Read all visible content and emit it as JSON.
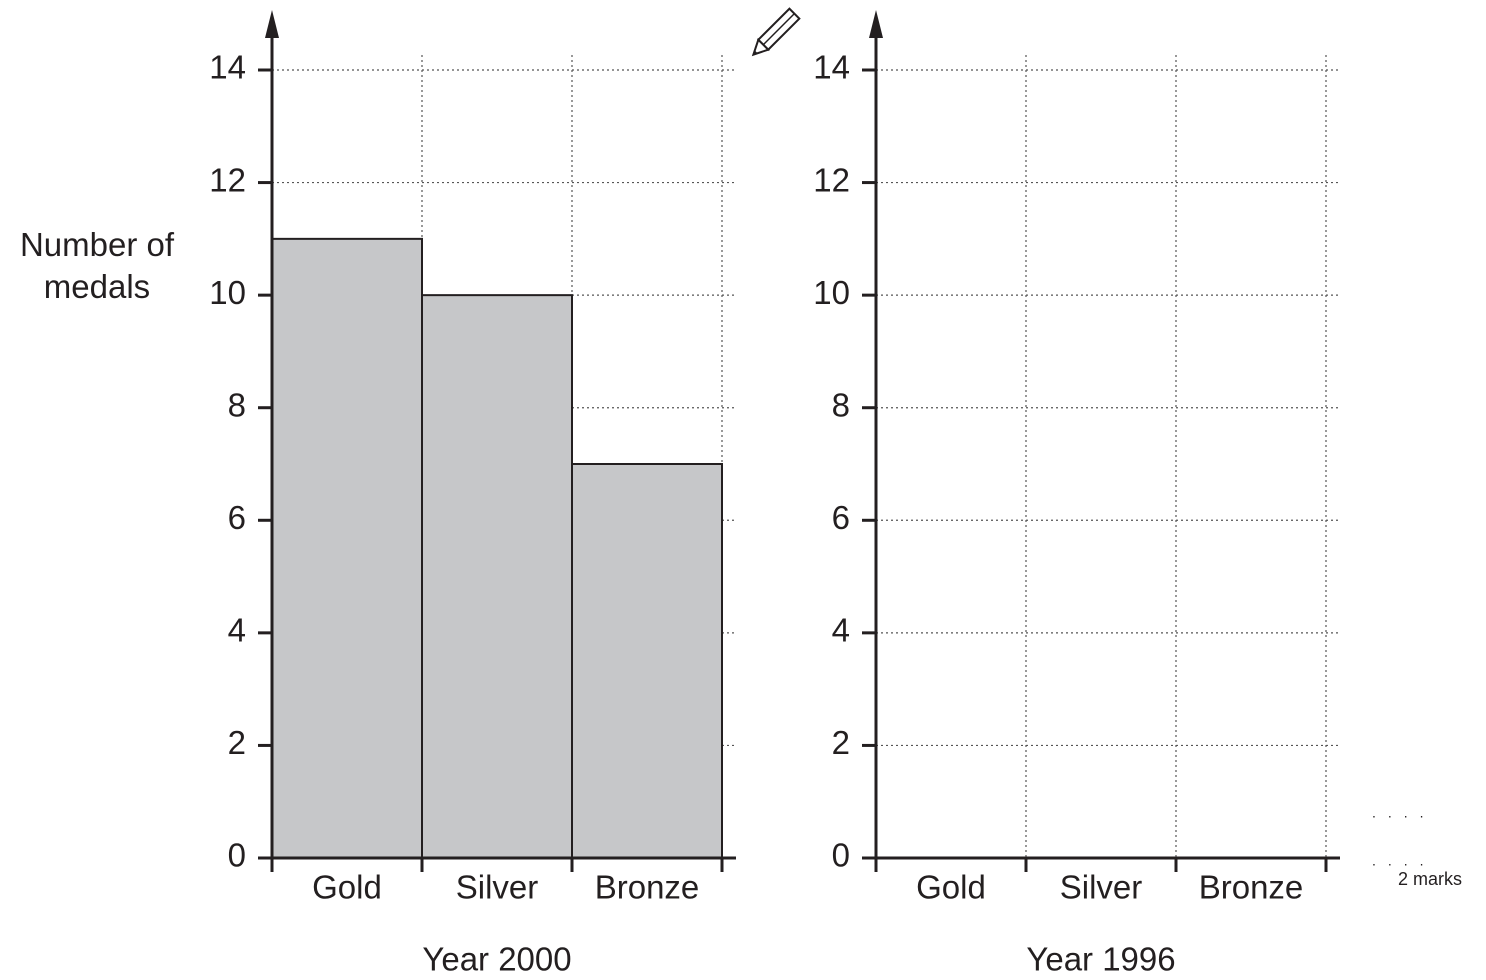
{
  "chart_data": [
    {
      "type": "bar",
      "title": "Year 2000",
      "ylabel": "Number of medals",
      "categories": [
        "Gold",
        "Silver",
        "Bronze"
      ],
      "values": [
        11,
        10,
        7
      ],
      "color": "#c6c7c9",
      "ylim": [
        0,
        14
      ],
      "yticks": [
        0,
        2,
        4,
        6,
        8,
        10,
        12,
        14
      ],
      "grid": true
    },
    {
      "type": "bar",
      "title": "Year 1996",
      "categories": [
        "Gold",
        "Silver",
        "Bronze"
      ],
      "values": [
        null,
        null,
        null
      ],
      "color": "#c6c7c9",
      "ylim": [
        0,
        14
      ],
      "yticks": [
        0,
        2,
        4,
        6,
        8,
        10,
        12,
        14
      ],
      "grid": true
    }
  ],
  "mark_allocation": "2 marks"
}
